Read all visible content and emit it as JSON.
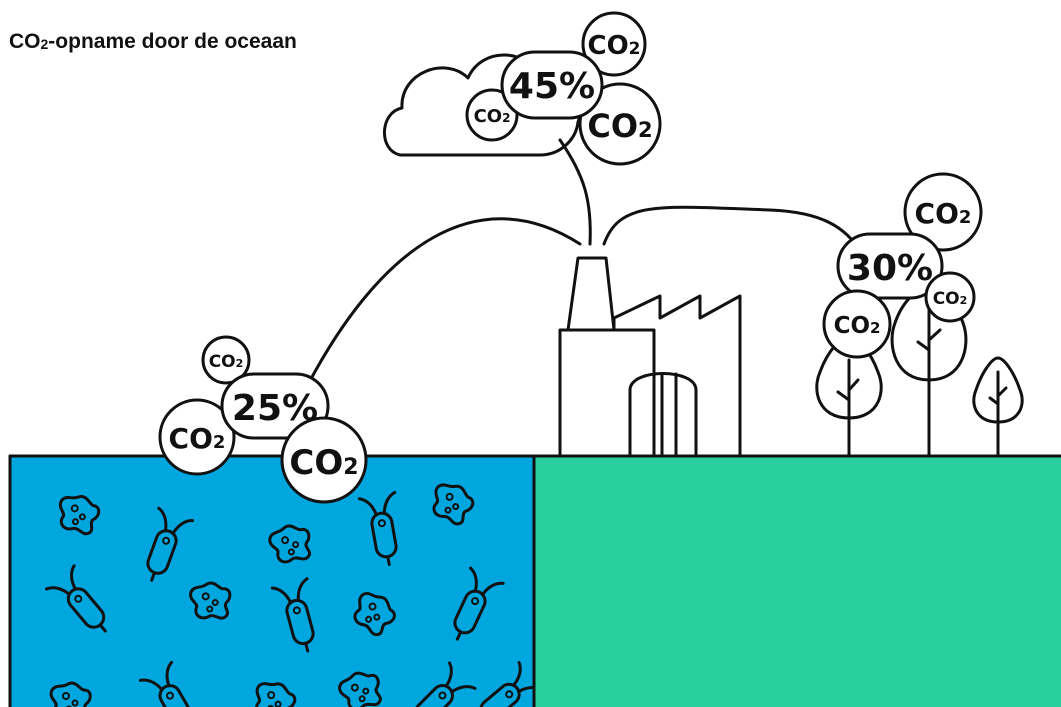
{
  "title": {
    "main": "CO",
    "sub": "2",
    "rest": "-opname door de oceaan"
  },
  "bubbles": {
    "co2": {
      "main": "CO",
      "sub": "2"
    },
    "atmosphere_pct": "45%",
    "land_pct": "30%",
    "ocean_pct": "25%"
  },
  "colors": {
    "ocean": "#00A6DE",
    "land": "#2ACF9F",
    "cloud": "#C8C8C8",
    "tree": "#2ACF9F",
    "ink": "#111111"
  }
}
